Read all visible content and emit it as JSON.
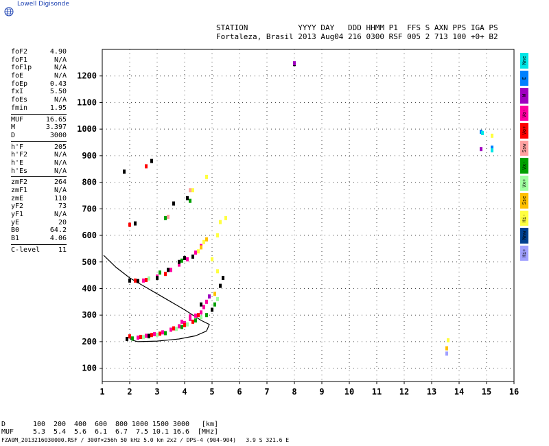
{
  "brand": {
    "text": "Lowell Digisonde"
  },
  "header": {
    "line1": "STATION           YYYY DAY   DDD HHMM P1  FFS S AXN PPS IGA PS",
    "line2": "Fortaleza, Brasil 2013 Aug04 216 0300 RSF 005 2 713 100 +0+ B2"
  },
  "parameters": [
    {
      "name": "foF2",
      "value": "4.90"
    },
    {
      "name": "foF1",
      "value": "N/A"
    },
    {
      "name": "foF1p",
      "value": "N/A"
    },
    {
      "name": "foE",
      "value": "N/A"
    },
    {
      "name": "foEp",
      "value": "0.43"
    },
    {
      "name": "fxI",
      "value": "5.50"
    },
    {
      "name": "foEs",
      "value": "N/A"
    },
    {
      "name": "fmin",
      "value": "1.95"
    },
    {
      "sep": true
    },
    {
      "name": "MUF",
      "value": "16.65"
    },
    {
      "name": "M",
      "value": "3.397"
    },
    {
      "name": "D",
      "value": "3000"
    },
    {
      "sep": true
    },
    {
      "name": "h'F",
      "value": "205"
    },
    {
      "name": "h'F2",
      "value": "N/A"
    },
    {
      "name": "h'E",
      "value": "N/A"
    },
    {
      "name": "h'Es",
      "value": "N/A"
    },
    {
      "sep": true
    },
    {
      "name": "zmF2",
      "value": "264"
    },
    {
      "name": "zmF1",
      "value": "N/A"
    },
    {
      "name": "zmE",
      "value": "110"
    },
    {
      "name": "yF2",
      "value": "73"
    },
    {
      "name": "yF1",
      "value": "N/A"
    },
    {
      "name": "yE",
      "value": "20"
    },
    {
      "name": "B0",
      "value": "64.2"
    },
    {
      "name": "B1",
      "value": "4.06"
    },
    {
      "sep": true
    },
    {
      "name": "C-level",
      "value": "11"
    }
  ],
  "legend": [
    {
      "label": "Nne",
      "color": "#00e6e6"
    },
    {
      "label": "E",
      "color": "#0080ff"
    },
    {
      "label": "W",
      "color": "#a000c0"
    },
    {
      "label": "Vo-",
      "color": "#ff00a0"
    },
    {
      "label": "Vo+",
      "color": "#ff0000"
    },
    {
      "label": "Ssw",
      "color": "#ffa0a0"
    },
    {
      "label": "Vx-",
      "color": "#00a000"
    },
    {
      "label": "Vx+",
      "color": "#a0ffa0"
    },
    {
      "label": "Sse",
      "color": "#ffc000"
    },
    {
      "label": "Hi-",
      "color": "#ffff40"
    },
    {
      "label": "Nnw",
      "color": "#004090"
    },
    {
      "label": "Hi+",
      "color": "#a0a0ff"
    }
  ],
  "muf_table": {
    "d_label": "D",
    "d_values": [
      "100",
      "200",
      "400",
      "600",
      "800",
      "1000",
      "1500",
      "3000"
    ],
    "d_unit": "[km]",
    "muf_label": "MUF",
    "muf_values": [
      "5.3",
      "5.4",
      "5.6",
      "6.1",
      "6.7",
      "7.5",
      "10.1",
      "16.6"
    ],
    "muf_unit": "[MHz]"
  },
  "footer": {
    "text": "FZA0M_2013216030000.RSF / 300f×256h 50 kHz 5.0 km 2x2 / DPS-4 (904-904)   3.9 S 321.6 E"
  },
  "chart_data": {
    "type": "scatter",
    "xlim": [
      1,
      16
    ],
    "ylim": [
      50,
      1300
    ],
    "xticks": [
      1,
      2,
      3,
      4,
      5,
      6,
      7,
      8,
      9,
      10,
      11,
      12,
      13,
      14,
      15,
      16
    ],
    "yticks": [
      100,
      200,
      300,
      400,
      500,
      600,
      700,
      800,
      900,
      1000,
      1100,
      1200
    ],
    "grid": true,
    "series": [
      {
        "color": "#ff00a0",
        "points": [
          [
            2.3,
            215
          ],
          [
            2.6,
            222
          ],
          [
            2.9,
            228
          ],
          [
            3.2,
            235
          ],
          [
            3.5,
            245
          ],
          [
            3.8,
            258
          ],
          [
            4.0,
            270
          ],
          [
            4.2,
            285
          ],
          [
            4.4,
            298
          ],
          [
            4.6,
            310
          ],
          [
            4.7,
            330
          ],
          [
            4.8,
            350
          ],
          [
            2.5,
            430
          ],
          [
            3.0,
            445
          ],
          [
            3.5,
            470
          ],
          [
            3.8,
            490
          ],
          [
            4.1,
            510
          ],
          [
            4.4,
            535
          ],
          [
            4.6,
            560
          ],
          [
            4.2,
            295
          ],
          [
            3.9,
            275
          ]
        ]
      },
      {
        "color": "#ff0000",
        "points": [
          [
            2.0,
            220
          ],
          [
            2.4,
            218
          ],
          [
            2.8,
            225
          ],
          [
            3.1,
            230
          ],
          [
            3.6,
            250
          ],
          [
            4.0,
            262
          ],
          [
            4.3,
            275
          ],
          [
            4.5,
            300
          ],
          [
            2.2,
            430
          ],
          [
            2.6,
            432
          ],
          [
            3.3,
            455
          ],
          [
            2.6,
            860
          ],
          [
            2.0,
            640
          ]
        ]
      },
      {
        "color": "#00a000",
        "points": [
          [
            2.1,
            212
          ],
          [
            2.7,
            220
          ],
          [
            3.3,
            232
          ],
          [
            3.9,
            255
          ],
          [
            4.4,
            280
          ],
          [
            4.8,
            300
          ],
          [
            5.1,
            340
          ],
          [
            3.1,
            460
          ],
          [
            3.9,
            505
          ],
          [
            3.3,
            665
          ],
          [
            4.2,
            730
          ]
        ]
      },
      {
        "color": "#a0ffa0",
        "points": [
          [
            2.5,
            217
          ],
          [
            3.0,
            226
          ],
          [
            3.7,
            248
          ],
          [
            4.1,
            265
          ],
          [
            4.6,
            292
          ],
          [
            5.2,
            360
          ],
          [
            2.7,
            438
          ]
        ]
      },
      {
        "color": "#ffff40",
        "points": [
          [
            4.5,
            540
          ],
          [
            4.7,
            575
          ],
          [
            5.0,
            510
          ],
          [
            5.2,
            465
          ],
          [
            5.2,
            600
          ],
          [
            5.3,
            650
          ],
          [
            4.3,
            770
          ],
          [
            4.8,
            820
          ],
          [
            5.5,
            665
          ],
          [
            15.2,
            975
          ],
          [
            13.6,
            205
          ]
        ]
      },
      {
        "color": "#ffc000",
        "points": [
          [
            4.6,
            555
          ],
          [
            5.1,
            380
          ],
          [
            4.8,
            585
          ],
          [
            13.55,
            175
          ]
        ]
      },
      {
        "color": "#000000",
        "points": [
          [
            1.9,
            210
          ],
          [
            2.0,
            430
          ],
          [
            2.3,
            428
          ],
          [
            2.7,
            222
          ],
          [
            3.0,
            440
          ],
          [
            3.4,
            470
          ],
          [
            3.8,
            500
          ],
          [
            4.0,
            515
          ],
          [
            4.3,
            520
          ],
          [
            4.6,
            340
          ],
          [
            5.0,
            320
          ],
          [
            5.3,
            410
          ],
          [
            1.8,
            840
          ],
          [
            2.2,
            645
          ],
          [
            2.8,
            880
          ],
          [
            3.6,
            720
          ],
          [
            4.1,
            740
          ],
          [
            5.4,
            440
          ],
          [
            8.0,
            1245
          ]
        ]
      },
      {
        "color": "#0080ff",
        "points": [
          [
            14.8,
            990
          ],
          [
            15.2,
            930
          ]
        ]
      },
      {
        "color": "#a000c0",
        "points": [
          [
            8.0,
            1248
          ],
          [
            14.8,
            925
          ],
          [
            4.9,
            370
          ]
        ]
      },
      {
        "color": "#00e6e6",
        "points": [
          [
            15.2,
            920
          ],
          [
            14.85,
            985
          ]
        ]
      },
      {
        "color": "#a0a0ff",
        "points": [
          [
            13.55,
            155
          ]
        ]
      },
      {
        "color": "#ffa0a0",
        "points": [
          [
            3.4,
            670
          ],
          [
            4.2,
            770
          ]
        ]
      }
    ],
    "profile_curve": [
      [
        1.05,
        525
      ],
      [
        1.5,
        480
      ],
      [
        2.0,
        440
      ],
      [
        2.5,
        410
      ],
      [
        3.0,
        380
      ],
      [
        3.5,
        350
      ],
      [
        4.0,
        320
      ],
      [
        4.3,
        300
      ],
      [
        4.6,
        280
      ],
      [
        4.9,
        265
      ],
      [
        4.8,
        240
      ],
      [
        4.4,
        222
      ],
      [
        3.8,
        210
      ],
      [
        3.0,
        202
      ],
      [
        2.3,
        200
      ],
      [
        2.1,
        205
      ],
      [
        2.0,
        212
      ]
    ]
  }
}
